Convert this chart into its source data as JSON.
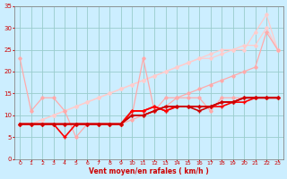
{
  "title": "",
  "xlabel": "Vent moyen/en rafales ( km/h )",
  "ylabel": "",
  "xlim": [
    -0.5,
    23.5
  ],
  "ylim": [
    0,
    35
  ],
  "xticks": [
    0,
    1,
    2,
    3,
    4,
    5,
    6,
    7,
    8,
    9,
    10,
    11,
    12,
    13,
    14,
    15,
    16,
    17,
    18,
    19,
    20,
    21,
    22,
    23
  ],
  "yticks": [
    0,
    5,
    10,
    15,
    20,
    25,
    30,
    35
  ],
  "bg_color": "#cceeff",
  "grid_color": "#99cccc",
  "lines": [
    {
      "x": [
        0,
        1,
        2,
        3,
        4,
        5,
        6,
        7,
        8,
        9,
        10,
        11,
        12,
        13,
        14,
        15,
        16,
        17,
        18,
        19,
        20,
        21,
        22,
        23
      ],
      "y": [
        23,
        11,
        14,
        14,
        11,
        5,
        8,
        8,
        8,
        8,
        10,
        23,
        11,
        14,
        14,
        14,
        14,
        11,
        14,
        14,
        14,
        14,
        14,
        14
      ],
      "color": "#ffaaaa",
      "lw": 0.9,
      "marker": "D",
      "ms": 1.8,
      "zorder": 3
    },
    {
      "x": [
        0,
        1,
        2,
        3,
        4,
        5,
        6,
        7,
        8,
        9,
        10,
        11,
        12,
        13,
        14,
        15,
        16,
        17,
        18,
        19,
        20,
        21,
        22,
        23
      ],
      "y": [
        8,
        8,
        8,
        8,
        8,
        8,
        8,
        8,
        8,
        8,
        9,
        10,
        11,
        12,
        14,
        15,
        16,
        17,
        18,
        19,
        20,
        21,
        29,
        25
      ],
      "color": "#ffaaaa",
      "lw": 0.9,
      "marker": "D",
      "ms": 1.8,
      "zorder": 3
    },
    {
      "x": [
        0,
        1,
        2,
        3,
        4,
        5,
        6,
        7,
        8,
        9,
        10,
        11,
        12,
        13,
        14,
        15,
        16,
        17,
        18,
        19,
        20,
        21,
        22,
        23
      ],
      "y": [
        8,
        8,
        9,
        10,
        11,
        12,
        13,
        14,
        15,
        16,
        17,
        18,
        19,
        20,
        21,
        22,
        23,
        24,
        25,
        25,
        26,
        26,
        30,
        25
      ],
      "color": "#ffcccc",
      "lw": 0.9,
      "marker": "D",
      "ms": 1.8,
      "zorder": 2
    },
    {
      "x": [
        0,
        1,
        2,
        3,
        4,
        5,
        6,
        7,
        8,
        9,
        10,
        11,
        12,
        13,
        14,
        15,
        16,
        17,
        18,
        19,
        20,
        21,
        22,
        23
      ],
      "y": [
        8,
        8,
        9,
        10,
        11,
        12,
        13,
        14,
        15,
        16,
        17,
        18,
        19,
        20,
        21,
        22,
        23,
        23,
        24,
        25,
        25,
        29,
        33,
        25
      ],
      "color": "#ffcccc",
      "lw": 0.9,
      "marker": "D",
      "ms": 1.8,
      "zorder": 2
    },
    {
      "x": [
        0,
        1,
        2,
        3,
        4,
        5,
        6,
        7,
        8,
        9,
        10,
        11,
        12,
        13,
        14,
        15,
        16,
        17,
        18,
        19,
        20,
        21,
        22,
        23
      ],
      "y": [
        8,
        8,
        8,
        8,
        8,
        8,
        8,
        8,
        8,
        8,
        11,
        11,
        12,
        11,
        12,
        12,
        12,
        12,
        12,
        13,
        13,
        14,
        14,
        14
      ],
      "color": "#ff0000",
      "lw": 1.2,
      "marker": "+",
      "ms": 3,
      "zorder": 5
    },
    {
      "x": [
        0,
        1,
        2,
        3,
        4,
        5,
        6,
        7,
        8,
        9,
        10,
        11,
        12,
        13,
        14,
        15,
        16,
        17,
        18,
        19,
        20,
        21,
        22,
        23
      ],
      "y": [
        8,
        8,
        8,
        8,
        5,
        8,
        8,
        8,
        8,
        8,
        11,
        11,
        12,
        11,
        12,
        12,
        12,
        12,
        13,
        13,
        14,
        14,
        14,
        14
      ],
      "color": "#ff0000",
      "lw": 1.2,
      "marker": "+",
      "ms": 3,
      "zorder": 5
    },
    {
      "x": [
        0,
        1,
        2,
        3,
        4,
        5,
        6,
        7,
        8,
        9,
        10,
        11,
        12,
        13,
        14,
        15,
        16,
        17,
        18,
        19,
        20,
        21,
        22,
        23
      ],
      "y": [
        8,
        8,
        8,
        8,
        8,
        8,
        8,
        8,
        8,
        8,
        10,
        10,
        11,
        12,
        12,
        12,
        12,
        12,
        13,
        13,
        14,
        14,
        14,
        14
      ],
      "color": "#cc0000",
      "lw": 1.2,
      "marker": "+",
      "ms": 3,
      "zorder": 5
    },
    {
      "x": [
        0,
        1,
        2,
        3,
        4,
        5,
        6,
        7,
        8,
        9,
        10,
        11,
        12,
        13,
        14,
        15,
        16,
        17,
        18,
        19,
        20,
        21,
        22,
        23
      ],
      "y": [
        8,
        8,
        8,
        8,
        8,
        8,
        8,
        8,
        8,
        8,
        10,
        10,
        11,
        12,
        12,
        12,
        11,
        12,
        13,
        13,
        14,
        14,
        14,
        14
      ],
      "color": "#cc0000",
      "lw": 1.2,
      "marker": "+",
      "ms": 3,
      "zorder": 5
    }
  ]
}
